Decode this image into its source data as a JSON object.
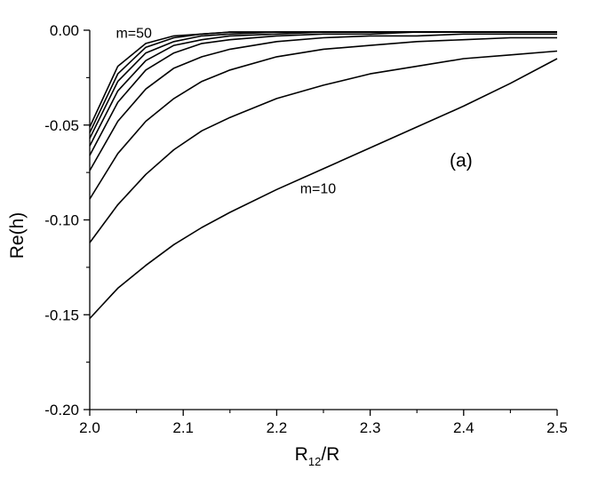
{
  "chart_data": {
    "type": "line",
    "xlabel_main": "R",
    "xlabel_sub": "12",
    "xlabel_tail": "/R",
    "ylabel": "Re(h)",
    "xlim": [
      2.0,
      2.5
    ],
    "ylim": [
      -0.2,
      0.0
    ],
    "x_ticks": [
      2.0,
      2.1,
      2.2,
      2.3,
      2.4,
      2.5
    ],
    "x_tick_labels": [
      "2.0",
      "2.1",
      "2.2",
      "2.3",
      "2.4",
      "2.5"
    ],
    "y_ticks": [
      0.0,
      -0.05,
      -0.1,
      -0.15,
      -0.2
    ],
    "y_tick_labels": [
      "0.00",
      "-0.05",
      "-0.10",
      "-0.15",
      "-0.20"
    ],
    "grid": false,
    "annotations": [
      {
        "text": "m=50",
        "x": 2.028,
        "y": -0.004
      },
      {
        "text": "m=10",
        "x": 2.225,
        "y": -0.086
      },
      {
        "text": "(a)",
        "x": 2.385,
        "y": -0.072
      }
    ],
    "panel_label": "(a)",
    "line_color": "#000000",
    "series": [
      {
        "x": [
          2.0,
          2.03,
          2.06,
          2.09,
          2.12,
          2.15,
          2.2,
          2.25,
          2.3,
          2.35,
          2.4,
          2.45,
          2.5
        ],
        "values": [
          -0.152,
          -0.136,
          -0.124,
          -0.113,
          -0.104,
          -0.096,
          -0.084,
          -0.073,
          -0.062,
          -0.051,
          -0.04,
          -0.028,
          -0.015
        ]
      },
      {
        "x": [
          2.0,
          2.03,
          2.06,
          2.09,
          2.12,
          2.15,
          2.2,
          2.25,
          2.3,
          2.35,
          2.4,
          2.45,
          2.5
        ],
        "values": [
          -0.112,
          -0.092,
          -0.076,
          -0.063,
          -0.053,
          -0.046,
          -0.036,
          -0.029,
          -0.023,
          -0.019,
          -0.015,
          -0.013,
          -0.011
        ]
      },
      {
        "x": [
          2.0,
          2.03,
          2.06,
          2.09,
          2.12,
          2.15,
          2.2,
          2.25,
          2.3,
          2.35,
          2.4,
          2.45,
          2.5
        ],
        "values": [
          -0.089,
          -0.065,
          -0.048,
          -0.036,
          -0.027,
          -0.021,
          -0.014,
          -0.01,
          -0.008,
          -0.006,
          -0.005,
          -0.004,
          -0.004
        ]
      },
      {
        "x": [
          2.0,
          2.03,
          2.06,
          2.09,
          2.12,
          2.15,
          2.2,
          2.25,
          2.3,
          2.35,
          2.4,
          2.45,
          2.5
        ],
        "values": [
          -0.074,
          -0.048,
          -0.031,
          -0.02,
          -0.014,
          -0.01,
          -0.006,
          -0.004,
          -0.003,
          -0.003,
          -0.002,
          -0.002,
          -0.002
        ]
      },
      {
        "x": [
          2.0,
          2.03,
          2.06,
          2.09,
          2.12,
          2.15,
          2.2,
          2.25,
          2.3,
          2.35,
          2.4,
          2.45,
          2.5
        ],
        "values": [
          -0.066,
          -0.038,
          -0.021,
          -0.012,
          -0.007,
          -0.005,
          -0.003,
          -0.002,
          -0.002,
          -0.001,
          -0.001,
          -0.001,
          -0.001
        ]
      },
      {
        "x": [
          2.0,
          2.03,
          2.06,
          2.09,
          2.12,
          2.15,
          2.2,
          2.25,
          2.3,
          2.35,
          2.4,
          2.45,
          2.5
        ],
        "values": [
          -0.061,
          -0.032,
          -0.016,
          -0.008,
          -0.005,
          -0.003,
          -0.002,
          -0.001,
          -0.001,
          -0.001,
          -0.001,
          -0.001,
          -0.001
        ]
      },
      {
        "x": [
          2.0,
          2.03,
          2.06,
          2.09,
          2.12,
          2.15,
          2.2,
          2.25,
          2.3,
          2.35,
          2.4,
          2.45,
          2.5
        ],
        "values": [
          -0.057,
          -0.027,
          -0.012,
          -0.006,
          -0.003,
          -0.002,
          -0.001,
          -0.001,
          -0.001,
          -0.001,
          -0.001,
          -0.001,
          -0.001
        ]
      },
      {
        "x": [
          2.0,
          2.03,
          2.06,
          2.09,
          2.12,
          2.15,
          2.2,
          2.25,
          2.3,
          2.35,
          2.4,
          2.45,
          2.5
        ],
        "values": [
          -0.054,
          -0.023,
          -0.009,
          -0.004,
          -0.002,
          -0.001,
          -0.001,
          -0.001,
          -0.001,
          -0.001,
          -0.001,
          -0.001,
          -0.001
        ]
      },
      {
        "x": [
          2.0,
          2.03,
          2.06,
          2.09,
          2.12,
          2.15,
          2.2,
          2.25,
          2.3,
          2.35,
          2.4,
          2.45,
          2.5
        ],
        "values": [
          -0.051,
          -0.019,
          -0.007,
          -0.003,
          -0.002,
          -0.001,
          -0.001,
          -0.001,
          -0.001,
          -0.001,
          -0.001,
          -0.001,
          -0.001
        ]
      }
    ]
  }
}
